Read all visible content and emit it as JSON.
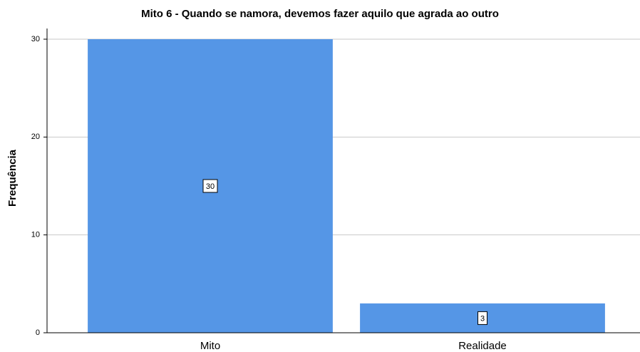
{
  "chart_data": {
    "type": "bar",
    "title": "Mito 6 - Quando se namora, devemos fazer aquilo que agrada ao outro",
    "categories": [
      "Mito",
      "Realidade"
    ],
    "values": [
      30,
      3
    ],
    "color": "#5596e6",
    "ylabel": "Frequência",
    "ylim": [
      0,
      30
    ],
    "yticks": [
      0,
      10,
      20,
      30
    ],
    "grid": true
  }
}
